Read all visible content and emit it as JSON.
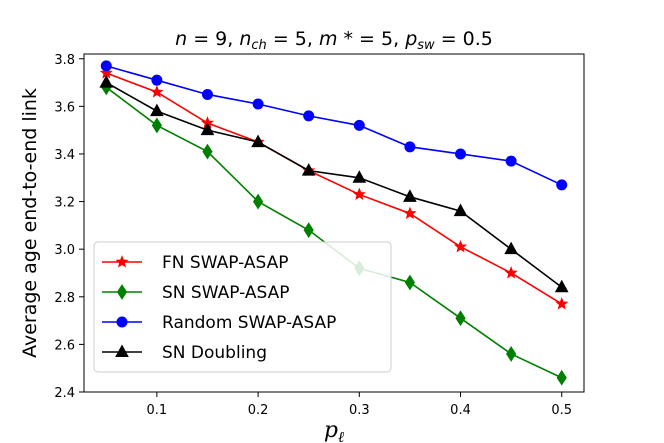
{
  "chart_data": {
    "type": "line",
    "title": "n = 9, n_ch = 5, m* = 5, p_sw = 0.5",
    "title_parts": [
      {
        "t": "n",
        "italic": true
      },
      {
        "t": " = 9, "
      },
      {
        "t": "n",
        "italic": true
      },
      {
        "t": "ch",
        "italic": true,
        "sub": true
      },
      {
        "t": " = 5, "
      },
      {
        "t": "m",
        "italic": true
      },
      {
        "t": " * = 5, "
      },
      {
        "t": "p",
        "italic": true
      },
      {
        "t": "sw",
        "italic": true,
        "sub": true
      },
      {
        "t": " = 0.5"
      }
    ],
    "xlabel": "p_ℓ",
    "xlabel_main": "p",
    "xlabel_sub": "ℓ",
    "ylabel": "Average age end-to-end link",
    "xlim": [
      0.028,
      0.522
    ],
    "ylim": [
      2.4,
      3.82
    ],
    "xticks": [
      0.1,
      0.2,
      0.3,
      0.4,
      0.5
    ],
    "xtick_labels": [
      "0.1",
      "0.2",
      "0.3",
      "0.4",
      "0.5"
    ],
    "yticks": [
      2.4,
      2.6,
      2.8,
      3.0,
      3.2,
      3.4,
      3.6,
      3.8
    ],
    "ytick_labels": [
      "2.4",
      "2.6",
      "2.8",
      "3.0",
      "3.2",
      "3.4",
      "3.6",
      "3.8"
    ],
    "x": [
      0.05,
      0.1,
      0.15,
      0.2,
      0.25,
      0.3,
      0.35,
      0.4,
      0.45,
      0.5
    ],
    "legend_position": "lower-left",
    "grid": false,
    "series": [
      {
        "name": "FN SWAP-ASAP",
        "color": "#ff0000",
        "marker": "star",
        "values": [
          3.74,
          3.66,
          3.53,
          3.45,
          3.33,
          3.23,
          3.15,
          3.01,
          2.9,
          2.77
        ]
      },
      {
        "name": "SN SWAP-ASAP",
        "color": "#008000",
        "marker": "diamond",
        "values": [
          3.68,
          3.52,
          3.41,
          3.2,
          3.08,
          2.92,
          2.86,
          2.71,
          2.56,
          2.46
        ]
      },
      {
        "name": "Random SWAP-ASAP",
        "color": "#0000ff",
        "marker": "circle",
        "values": [
          3.77,
          3.71,
          3.65,
          3.61,
          3.56,
          3.52,
          3.43,
          3.4,
          3.37,
          3.27
        ]
      },
      {
        "name": "SN Doubling",
        "color": "#000000",
        "marker": "triangle",
        "values": [
          3.7,
          3.58,
          3.5,
          3.45,
          3.33,
          3.3,
          3.22,
          3.16,
          3.0,
          2.84
        ]
      }
    ]
  }
}
